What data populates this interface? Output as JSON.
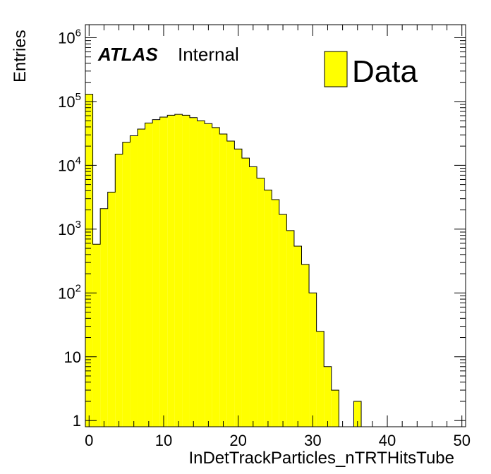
{
  "chart_data": {
    "type": "bar",
    "xlabel": "InDetTrackParticles_nTRTHitsTube",
    "ylabel": "Entries",
    "yscale": "log",
    "xlim": [
      -0.5,
      50.5
    ],
    "ylim": [
      0.8,
      1600000
    ],
    "x_tick_labels": [
      "0",
      "10",
      "20",
      "30",
      "40",
      "50"
    ],
    "y_tick_labels": [
      {
        "value": 1,
        "base": "1",
        "exp": ""
      },
      {
        "value": 10,
        "base": "10",
        "exp": ""
      },
      {
        "value": 100,
        "base": "10",
        "exp": "2"
      },
      {
        "value": 1000,
        "base": "10",
        "exp": "3"
      },
      {
        "value": 10000,
        "base": "10",
        "exp": "4"
      },
      {
        "value": 100000,
        "base": "10",
        "exp": "5"
      },
      {
        "value": 1000000,
        "base": "10",
        "exp": "6"
      }
    ],
    "series": [
      {
        "name": "Data",
        "color": "#ffff00",
        "edge_color": "#000000",
        "x": [
          0,
          1,
          2,
          3,
          4,
          5,
          6,
          7,
          8,
          9,
          10,
          11,
          12,
          13,
          14,
          15,
          16,
          17,
          18,
          19,
          20,
          21,
          22,
          23,
          24,
          25,
          26,
          27,
          28,
          29,
          30,
          31,
          32,
          33,
          34,
          35,
          36,
          37,
          38,
          39,
          40,
          41,
          42,
          43,
          44,
          45,
          46,
          47,
          48,
          49,
          50
        ],
        "values": [
          130000,
          580,
          2100,
          3800,
          15000,
          23000,
          29000,
          37000,
          46000,
          52000,
          57000,
          61000,
          63000,
          61000,
          56000,
          50000,
          45000,
          39000,
          31000,
          24000,
          18000,
          13000,
          9500,
          6300,
          4100,
          2900,
          1700,
          950,
          540,
          280,
          100,
          25,
          7,
          3,
          0,
          0,
          2,
          0,
          0,
          0,
          0,
          0,
          0,
          0,
          0,
          0,
          0,
          0,
          0,
          0,
          0
        ]
      }
    ],
    "annotations": {
      "atlas": "ATLAS",
      "status": "Internal"
    },
    "legend": {
      "position": "top-right",
      "label": "Data"
    }
  }
}
